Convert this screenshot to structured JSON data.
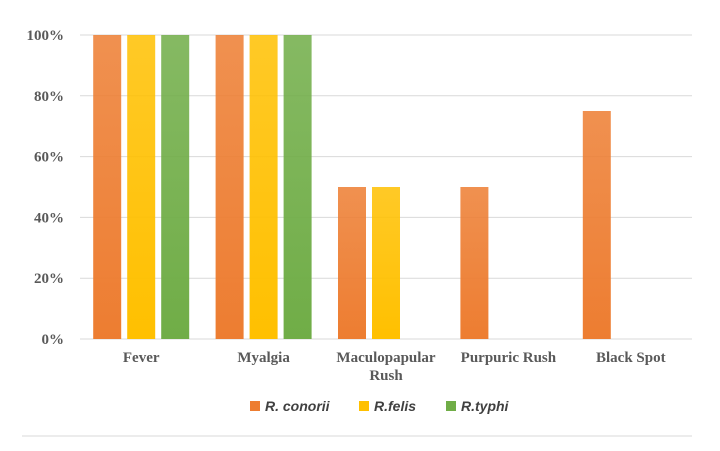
{
  "chart_data": {
    "type": "bar",
    "categories": [
      "Fever",
      "Myalgia",
      "Maculopapular Rush",
      "Purpuric Rush",
      "Black Spot"
    ],
    "category_lines": [
      [
        "Fever"
      ],
      [
        "Myalgia"
      ],
      [
        "Maculopapular",
        "Rush"
      ],
      [
        "Purpuric Rush"
      ],
      [
        "Black Spot"
      ]
    ],
    "series": [
      {
        "name": "R. conorii",
        "values": [
          100,
          100,
          50,
          50,
          75
        ],
        "color": "#ed7d31"
      },
      {
        "name": "R.felis",
        "values": [
          100,
          100,
          50,
          0,
          0
        ],
        "color": "#ffc000"
      },
      {
        "name": "R.typhi",
        "values": [
          100,
          100,
          0,
          0,
          0
        ],
        "color": "#70ad47"
      }
    ],
    "ylim": [
      0,
      100
    ],
    "yticks": [
      0,
      20,
      40,
      60,
      80,
      100
    ],
    "ytick_labels": [
      "0%",
      "20%",
      "40%",
      "60%",
      "80%",
      "100%"
    ],
    "xlabel": "",
    "ylabel": "",
    "title": "",
    "grid": true,
    "legend_position": "bottom"
  }
}
